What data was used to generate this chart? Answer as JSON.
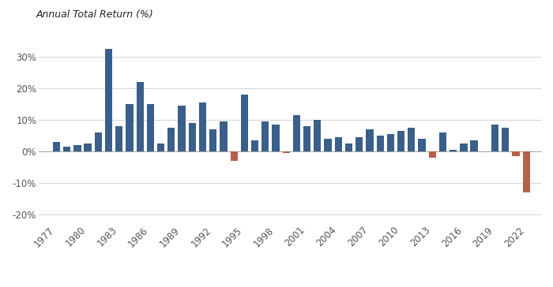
{
  "years": [
    1977,
    1978,
    1979,
    1980,
    1981,
    1982,
    1983,
    1984,
    1985,
    1986,
    1987,
    1988,
    1989,
    1990,
    1991,
    1992,
    1993,
    1994,
    1995,
    1996,
    1997,
    1998,
    1999,
    2000,
    2001,
    2002,
    2003,
    2004,
    2005,
    2006,
    2007,
    2008,
    2009,
    2010,
    2011,
    2012,
    2013,
    2014,
    2015,
    2016,
    2017,
    2018,
    2019,
    2020,
    2021,
    2022
  ],
  "returns": [
    3.0,
    1.5,
    2.0,
    2.5,
    6.0,
    32.5,
    8.0,
    15.0,
    22.0,
    15.0,
    2.5,
    7.5,
    14.5,
    9.0,
    15.5,
    7.0,
    9.5,
    -3.0,
    18.0,
    3.5,
    9.5,
    8.5,
    -0.5,
    11.5,
    8.0,
    10.0,
    4.0,
    4.5,
    2.5,
    4.5,
    7.0,
    5.0,
    5.5,
    6.5,
    7.5,
    4.0,
    -2.0,
    6.0,
    0.5,
    2.5,
    3.5,
    -0.05,
    8.5,
    7.5,
    -1.5,
    -13.0
  ],
  "positive_color": "#3A5F8A",
  "negative_color": "#B5614A",
  "ylabel": "Annual Total Return (%)",
  "ylim": [
    -23,
    37
  ],
  "yticks": [
    -20,
    -10,
    0,
    10,
    20,
    30
  ],
  "ytick_labels": [
    "-20%",
    "-10%",
    "0%",
    "10%",
    "20%",
    "30%"
  ],
  "xtick_years": [
    1977,
    1980,
    1983,
    1986,
    1989,
    1992,
    1995,
    1998,
    2001,
    2004,
    2007,
    2010,
    2013,
    2016,
    2019,
    2022
  ],
  "background_color": "#FFFFFF",
  "grid_color": "#CCCCCC",
  "bar_width": 0.7,
  "title_fontsize": 9,
  "tick_fontsize": 8.5,
  "xlim_left": 1975.3,
  "xlim_right": 2023.5
}
